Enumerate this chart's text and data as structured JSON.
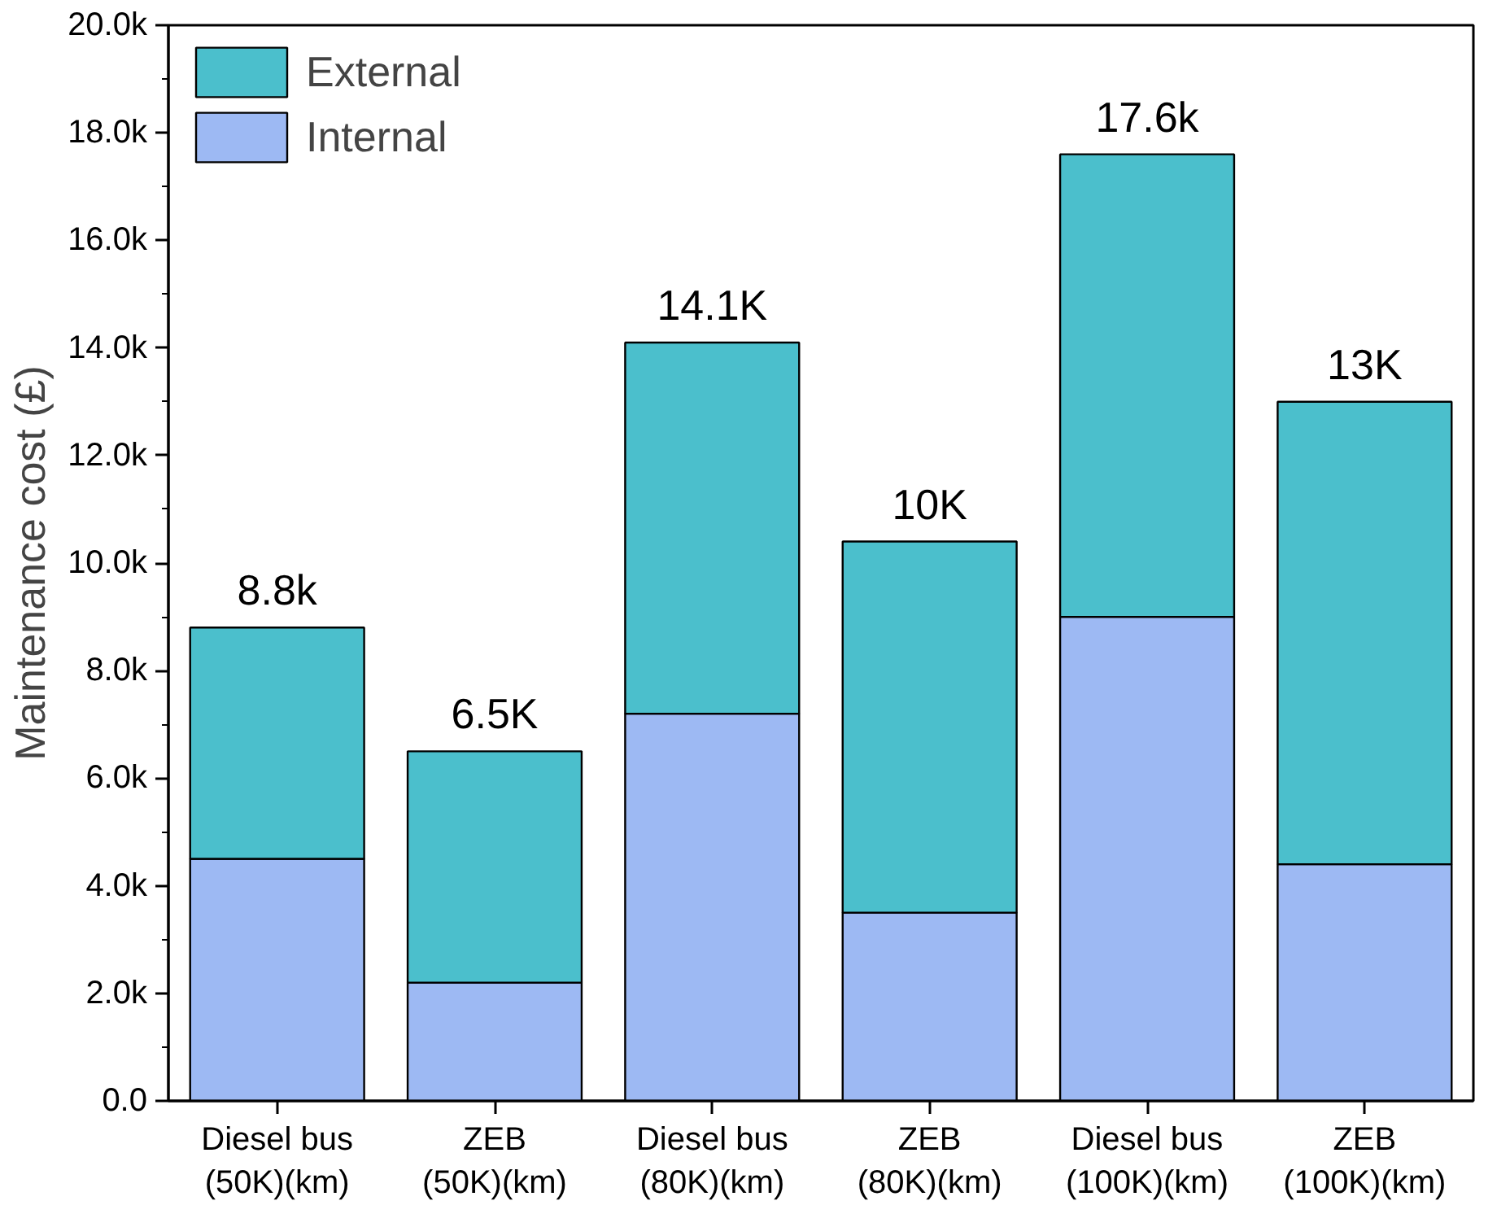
{
  "chart_data": {
    "type": "bar",
    "ylabel": "Maintenance cost (£)",
    "stacked": true,
    "categories": [
      "Diesel bus\n(50K)(km)",
      "ZEB\n(50K)(km)",
      "Diesel bus\n(80K)(km)",
      "ZEB\n(80K)(km)",
      "Diesel bus\n(100K)(km)",
      "ZEB\n(100K)(km)"
    ],
    "series": [
      {
        "name": "Internal",
        "color": "#9db9f3",
        "values": [
          4500,
          2200,
          7200,
          3500,
          9000,
          4400
        ]
      },
      {
        "name": "External",
        "color": "#4bbfcc",
        "values": [
          4300,
          4300,
          6900,
          6900,
          8600,
          8600
        ]
      }
    ],
    "totals": [
      "8.8k",
      "6.5K",
      "14.1K",
      "10K",
      "17.6k",
      "13K"
    ],
    "ylim": [
      0,
      20000
    ],
    "yticks": [
      {
        "value": 0,
        "label": "0.0"
      },
      {
        "value": 2000,
        "label": "2.0k"
      },
      {
        "value": 4000,
        "label": "4.0k"
      },
      {
        "value": 6000,
        "label": "6.0k"
      },
      {
        "value": 8000,
        "label": "8.0k"
      },
      {
        "value": 10000,
        "label": "10.0k"
      },
      {
        "value": 12000,
        "label": "12.0k"
      },
      {
        "value": 14000,
        "label": "14.0k"
      },
      {
        "value": 16000,
        "label": "16.0k"
      },
      {
        "value": 18000,
        "label": "18.0k"
      },
      {
        "value": 20000,
        "label": "20.0k"
      }
    ],
    "grid": false,
    "legend": "top left"
  }
}
